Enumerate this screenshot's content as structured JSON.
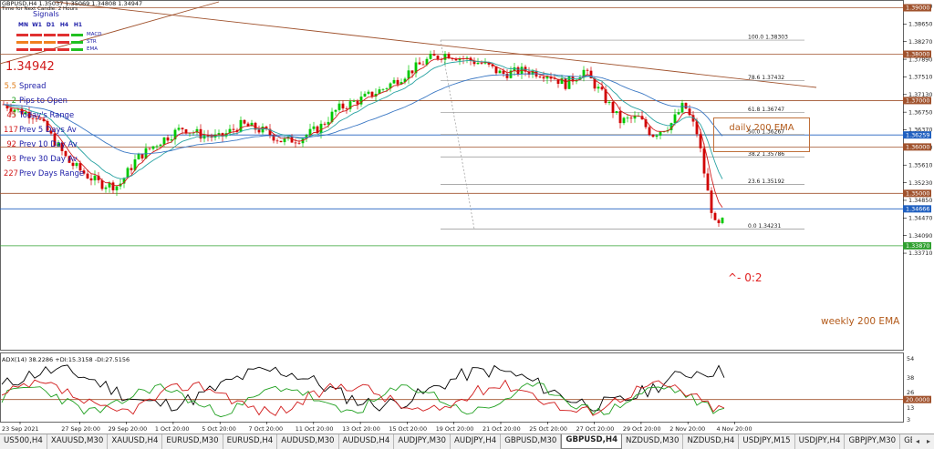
{
  "header": {
    "symbol_line": "GBPUSD,H4  1.35037 1.35069 1.34808 1.34947",
    "sub_line": "Time for Next Candle: 2 Hours"
  },
  "signals": {
    "title": "Signals",
    "timeframes": [
      "MN",
      "W1",
      "D1",
      "H4",
      "H1"
    ],
    "rows": [
      {
        "name": "MACD",
        "colors": [
          "#e03030",
          "#e03030",
          "#e03030",
          "#e03030",
          "#20c020"
        ]
      },
      {
        "name": "STR",
        "colors": [
          "#f08020",
          "#f08020",
          "#f08020",
          "#e03030",
          "#20c020"
        ]
      },
      {
        "name": "EMA",
        "colors": [
          "#e03030",
          "#e03030",
          "#e03030",
          "#e03030",
          "#20c020"
        ]
      }
    ]
  },
  "price_display": "1.34942",
  "stats": [
    {
      "value": "5.5",
      "label": "Spread",
      "value_color": "#e08020"
    },
    {
      "value": "2",
      "label": "Pips to Open",
      "value_color": "#20a020"
    },
    {
      "value": "45",
      "label": "Today's Range",
      "value_color": "#d11a1a"
    },
    {
      "value": "117",
      "label": "Prev 5 Days Av",
      "value_color": "#d11a1a"
    },
    {
      "value": "92",
      "label": "Prev 10 Day Av",
      "value_color": "#d11a1a"
    },
    {
      "value": "93",
      "label": "Prev 30 Day Av",
      "value_color": "#d11a1a"
    },
    {
      "value": "227",
      "label": "Prev Days Range",
      "value_color": "#d11a1a"
    }
  ],
  "annotations": {
    "daily_ema": "daily 200 EMA",
    "weekly_ema": "weekly 200 EMA",
    "note": "^- 0:2"
  },
  "adx_label": "ADX(14) 38.2286 +DI:15.3158 -DI:27.5156",
  "colors": {
    "bull": "#00c800",
    "bear": "#d10000",
    "ema_fast": "#d11a1a",
    "ema_mid": "#2aa3a3",
    "ema_slow": "#3b78c4",
    "level_line": "#a0522d",
    "fib_line": "#909090",
    "trend_line": "#a0522d",
    "adx": "#000000",
    "plus_di": "#20a020",
    "minus_di": "#d11a1a"
  },
  "chart_data": {
    "type": "candlestick",
    "symbol": "GBPUSD",
    "timeframe": "H4",
    "ylim": [
      1.3706,
      1.3932
    ],
    "y_ticks": [
      "1.39030",
      "1.38650",
      "1.38270",
      "1.37890",
      "1.37510",
      "1.37130",
      "1.36750",
      "1.36370",
      "1.35990",
      "1.35610",
      "1.35230",
      "1.34850",
      "1.34470",
      "1.34090",
      "1.33710"
    ],
    "x_labels": [
      "23 Sep 2021",
      "27 Sep 20:00",
      "29 Sep 20:00",
      "1 Oct 20:00",
      "5 Oct 20:00",
      "7 Oct 20:00",
      "11 Oct 20:00",
      "13 Oct 20:00",
      "15 Oct 20:00",
      "19 Oct 20:00",
      "21 Oct 20:00",
      "25 Oct 20:00",
      "27 Oct 20:00",
      "29 Oct 20:00",
      "2 Nov 20:00",
      "4 Nov 20:00"
    ],
    "price_path": [
      [
        1.3737,
        1.372
      ],
      [
        1.3705,
        1.3698
      ],
      [
        1.372,
        1.3752
      ],
      [
        1.374,
        1.376
      ],
      [
        1.3755,
        1.377
      ],
      [
        1.375,
        1.377
      ],
      [
        1.376,
        1.3775
      ],
      [
        1.377,
        1.38
      ],
      [
        1.3795,
        1.3825
      ],
      [
        1.3835,
        1.3838
      ],
      [
        1.382,
        1.383
      ],
      [
        1.376,
        1.379
      ],
      [
        1.3765,
        1.3785
      ],
      [
        1.3785,
        1.3815
      ],
      [
        1.382,
        1.383
      ],
      [
        1.378,
        1.376
      ],
      [
        1.372,
        1.3748
      ],
      [
        1.373,
        1.375
      ]
    ],
    "horizontal_levels": [
      {
        "price": "1.39000",
        "color": "#a0522d",
        "label_box": true
      },
      {
        "price": "1.38000",
        "color": "#a0522d",
        "label_box": true
      },
      {
        "price": "1.37000",
        "color": "#a0522d",
        "label_box": true,
        "note": "daily 200 EMA level"
      },
      {
        "price": "1.36259",
        "color": "#2060c0",
        "label_box": true
      },
      {
        "price": "1.36000",
        "color": "#a0522d",
        "label_box": true
      },
      {
        "price": "1.35000",
        "color": "#a0522d",
        "label_box": true
      },
      {
        "price": "1.34666",
        "color": "#2060c0",
        "label_box": true
      },
      {
        "price": "1.33870",
        "color": "#30a030",
        "label_box": true,
        "note": "weekly 200 EMA"
      }
    ],
    "fibonacci": [
      {
        "level": "100.0",
        "price": "1.38303"
      },
      {
        "level": "78.6",
        "price": "1.37432"
      },
      {
        "level": "61.8",
        "price": "1.36747"
      },
      {
        "level": "50.0",
        "price": "1.36267"
      },
      {
        "level": "38.2",
        "price": "1.35786"
      },
      {
        "level": "23.6",
        "price": "1.35192"
      },
      {
        "level": "0.0",
        "price": "1.34231"
      }
    ],
    "price_markers": [
      {
        "price": "1.38000"
      },
      {
        "price": "1.37000"
      },
      {
        "price": "1.36259"
      },
      {
        "price": "1.36000"
      },
      {
        "price": "1.35000"
      },
      {
        "price": "1.34666"
      },
      {
        "price": "1.33870"
      }
    ],
    "adx": {
      "adx": 38.2286,
      "plus_di": 15.3158,
      "minus_di": 27.5156,
      "y_ticks": [
        "54",
        "38",
        "26",
        "13",
        "3"
      ],
      "level_box": "20.0000"
    }
  },
  "tabs": [
    {
      "label": "US500,H4"
    },
    {
      "label": "XAUUSD,M30"
    },
    {
      "label": "XAUUSD,H4"
    },
    {
      "label": "EURUSD,M30"
    },
    {
      "label": "EURUSD,H4"
    },
    {
      "label": "AUDUSD,M30"
    },
    {
      "label": "AUDUSD,H4"
    },
    {
      "label": "AUDJPY,M30"
    },
    {
      "label": "AUDJPY,H4"
    },
    {
      "label": "GBPUSD,M30"
    },
    {
      "label": "GBPUSD,H4",
      "active": true
    },
    {
      "label": "NZDUSD,M30"
    },
    {
      "label": "NZDUSD,H4"
    },
    {
      "label": "USDJPY,M15"
    },
    {
      "label": "USDJPY,H4"
    },
    {
      "label": "GBPJPY,M30"
    },
    {
      "label": "GBPJPY,H4"
    },
    {
      "label": "WS"
    }
  ]
}
